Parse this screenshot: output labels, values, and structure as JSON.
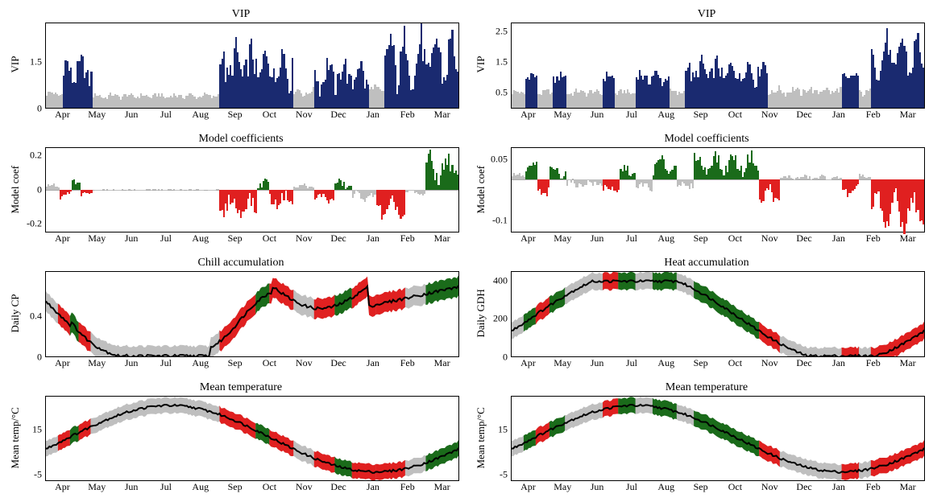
{
  "months": [
    "Apr",
    "May",
    "Jun",
    "Jul",
    "Aug",
    "Sep",
    "Oct",
    "Nov",
    "Dec",
    "Jan",
    "Feb",
    "Mar"
  ],
  "colors": {
    "navy": "#1a2a70",
    "gray": "#bfbfbf",
    "red": "#e02020",
    "green": "#1a6b1a",
    "black": "#000000",
    "band": "#bfbfbf"
  },
  "panels": [
    {
      "title": "VIP",
      "ylabel": "VIP",
      "type": "vip",
      "ylim": [
        0,
        2.8
      ],
      "yticks": [
        0.0,
        1.5
      ],
      "segments": [
        {
          "range": [
            0,
            0.04
          ],
          "base": 0.45,
          "amp": 0.05,
          "noise": 0.08,
          "hi": false
        },
        {
          "range": [
            0.04,
            0.11
          ],
          "base": 1.2,
          "amp": 0.3,
          "noise": 0.35,
          "hi": true
        },
        {
          "range": [
            0.11,
            0.42
          ],
          "base": 0.38,
          "amp": 0.05,
          "noise": 0.08,
          "hi": false
        },
        {
          "range": [
            0.42,
            0.6
          ],
          "base": 1.4,
          "amp": 0.5,
          "noise": 0.5,
          "hi": true
        },
        {
          "range": [
            0.6,
            0.65
          ],
          "base": 0.5,
          "amp": 0.1,
          "noise": 0.1,
          "hi": false
        },
        {
          "range": [
            0.65,
            0.78
          ],
          "base": 1.1,
          "amp": 0.4,
          "noise": 0.4,
          "hi": true
        },
        {
          "range": [
            0.78,
            0.82
          ],
          "base": 0.6,
          "amp": 0.1,
          "noise": 0.1,
          "hi": false
        },
        {
          "range": [
            0.82,
            1.0
          ],
          "base": 1.6,
          "amp": 0.7,
          "noise": 0.6,
          "hi": true
        }
      ]
    },
    {
      "title": "VIP",
      "ylabel": "VIP",
      "type": "vip",
      "ylim": [
        0,
        2.8
      ],
      "yticks": [
        0.5,
        1.5,
        2.5
      ],
      "segments": [
        {
          "range": [
            0,
            0.03
          ],
          "base": 0.5,
          "amp": 0.05,
          "noise": 0.08,
          "hi": false
        },
        {
          "range": [
            0.03,
            0.06
          ],
          "base": 1.0,
          "amp": 0.1,
          "noise": 0.15,
          "hi": true
        },
        {
          "range": [
            0.06,
            0.1
          ],
          "base": 0.5,
          "amp": 0.05,
          "noise": 0.08,
          "hi": false
        },
        {
          "range": [
            0.1,
            0.13
          ],
          "base": 1.0,
          "amp": 0.1,
          "noise": 0.15,
          "hi": true
        },
        {
          "range": [
            0.13,
            0.22
          ],
          "base": 0.5,
          "amp": 0.05,
          "noise": 0.1,
          "hi": false
        },
        {
          "range": [
            0.22,
            0.25
          ],
          "base": 1.0,
          "amp": 0.1,
          "noise": 0.15,
          "hi": true
        },
        {
          "range": [
            0.25,
            0.3
          ],
          "base": 0.5,
          "amp": 0.05,
          "noise": 0.1,
          "hi": false
        },
        {
          "range": [
            0.3,
            0.38
          ],
          "base": 1.0,
          "amp": 0.15,
          "noise": 0.2,
          "hi": true
        },
        {
          "range": [
            0.38,
            0.42
          ],
          "base": 0.5,
          "amp": 0.05,
          "noise": 0.1,
          "hi": false
        },
        {
          "range": [
            0.42,
            0.62
          ],
          "base": 1.2,
          "amp": 0.3,
          "noise": 0.3,
          "hi": true
        },
        {
          "range": [
            0.62,
            0.8
          ],
          "base": 0.55,
          "amp": 0.08,
          "noise": 0.12,
          "hi": false
        },
        {
          "range": [
            0.8,
            0.84
          ],
          "base": 1.0,
          "amp": 0.1,
          "noise": 0.15,
          "hi": true
        },
        {
          "range": [
            0.84,
            0.87
          ],
          "base": 0.5,
          "amp": 0.05,
          "noise": 0.1,
          "hi": false
        },
        {
          "range": [
            0.87,
            1.0
          ],
          "base": 1.7,
          "amp": 0.6,
          "noise": 0.4,
          "hi": true
        }
      ]
    },
    {
      "title": "Model coefficients",
      "ylabel": "Model coef",
      "type": "coef",
      "ylim": [
        -0.25,
        0.25
      ],
      "yticks": [
        -0.2,
        0.0,
        0.2
      ],
      "segments": [
        {
          "range": [
            0,
            0.03
          ],
          "base": 0.02,
          "amp": 0.01,
          "noise": 0.01,
          "color": "gray"
        },
        {
          "range": [
            0.03,
            0.06
          ],
          "base": -0.04,
          "amp": 0.02,
          "noise": 0.02,
          "color": "red"
        },
        {
          "range": [
            0.06,
            0.08
          ],
          "base": 0.05,
          "amp": 0.02,
          "noise": 0.02,
          "color": "green"
        },
        {
          "range": [
            0.08,
            0.11
          ],
          "base": -0.03,
          "amp": 0.01,
          "noise": 0.01,
          "color": "red"
        },
        {
          "range": [
            0.11,
            0.42
          ],
          "base": 0,
          "amp": 0,
          "noise": 0.003,
          "color": "gray"
        },
        {
          "range": [
            0.42,
            0.51
          ],
          "base": -0.1,
          "amp": 0.05,
          "noise": 0.04,
          "color": "red"
        },
        {
          "range": [
            0.51,
            0.54
          ],
          "base": 0.04,
          "amp": 0.02,
          "noise": 0.02,
          "color": "green"
        },
        {
          "range": [
            0.54,
            0.6
          ],
          "base": -0.06,
          "amp": 0.03,
          "noise": 0.03,
          "color": "red"
        },
        {
          "range": [
            0.6,
            0.65
          ],
          "base": 0.02,
          "amp": 0.01,
          "noise": 0.01,
          "color": "gray"
        },
        {
          "range": [
            0.65,
            0.7
          ],
          "base": -0.05,
          "amp": 0.02,
          "noise": 0.02,
          "color": "red"
        },
        {
          "range": [
            0.7,
            0.74
          ],
          "base": 0.03,
          "amp": 0.02,
          "noise": 0.02,
          "color": "green"
        },
        {
          "range": [
            0.74,
            0.8
          ],
          "base": -0.04,
          "amp": 0.02,
          "noise": 0.02,
          "color": "gray"
        },
        {
          "range": [
            0.8,
            0.87
          ],
          "base": -0.12,
          "amp": 0.05,
          "noise": 0.04,
          "color": "red"
        },
        {
          "range": [
            0.87,
            0.92
          ],
          "base": -0.02,
          "amp": 0.01,
          "noise": 0.01,
          "color": "gray"
        },
        {
          "range": [
            0.92,
            1.0
          ],
          "base": 0.13,
          "amp": 0.06,
          "noise": 0.05,
          "color": "green"
        }
      ]
    },
    {
      "title": "Model coefficients",
      "ylabel": "Model coef",
      "type": "coef",
      "ylim": [
        -0.13,
        0.08
      ],
      "yticks": [
        -0.1,
        0.05
      ],
      "segments": [
        {
          "range": [
            0,
            0.03
          ],
          "base": 0.01,
          "amp": 0.005,
          "noise": 0.005,
          "color": "gray"
        },
        {
          "range": [
            0.03,
            0.06
          ],
          "base": 0.03,
          "amp": 0.01,
          "noise": 0.01,
          "color": "green"
        },
        {
          "range": [
            0.06,
            0.09
          ],
          "base": -0.03,
          "amp": 0.01,
          "noise": 0.01,
          "color": "red"
        },
        {
          "range": [
            0.09,
            0.13
          ],
          "base": 0.02,
          "amp": 0.01,
          "noise": 0.01,
          "color": "green"
        },
        {
          "range": [
            0.13,
            0.22
          ],
          "base": -0.01,
          "amp": 0.005,
          "noise": 0.008,
          "color": "gray"
        },
        {
          "range": [
            0.22,
            0.26
          ],
          "base": -0.025,
          "amp": 0.01,
          "noise": 0.01,
          "color": "red"
        },
        {
          "range": [
            0.26,
            0.3
          ],
          "base": 0.02,
          "amp": 0.01,
          "noise": 0.01,
          "color": "green"
        },
        {
          "range": [
            0.3,
            0.34
          ],
          "base": -0.02,
          "amp": 0.01,
          "noise": 0.01,
          "color": "gray"
        },
        {
          "range": [
            0.34,
            0.4
          ],
          "base": 0.035,
          "amp": 0.015,
          "noise": 0.012,
          "color": "green"
        },
        {
          "range": [
            0.4,
            0.44
          ],
          "base": -0.015,
          "amp": 0.005,
          "noise": 0.008,
          "color": "gray"
        },
        {
          "range": [
            0.44,
            0.6
          ],
          "base": 0.04,
          "amp": 0.02,
          "noise": 0.015,
          "color": "green"
        },
        {
          "range": [
            0.6,
            0.65
          ],
          "base": -0.04,
          "amp": 0.02,
          "noise": 0.015,
          "color": "red"
        },
        {
          "range": [
            0.65,
            0.8
          ],
          "base": 0.005,
          "amp": 0.003,
          "noise": 0.005,
          "color": "gray"
        },
        {
          "range": [
            0.8,
            0.84
          ],
          "base": -0.03,
          "amp": 0.01,
          "noise": 0.01,
          "color": "red"
        },
        {
          "range": [
            0.84,
            0.87
          ],
          "base": 0.01,
          "amp": 0.005,
          "noise": 0.005,
          "color": "gray"
        },
        {
          "range": [
            0.87,
            1.0
          ],
          "base": -0.08,
          "amp": 0.04,
          "noise": 0.02,
          "color": "red"
        }
      ]
    },
    {
      "title": "Chill accumulation",
      "ylabel": "Daily CP",
      "type": "band",
      "ylim": [
        0,
        0.85
      ],
      "yticks": [
        0.0,
        0.4
      ],
      "curve": {
        "type": "chill"
      },
      "bandw": 0.1,
      "markers": [
        {
          "range": [
            0.03,
            0.06
          ],
          "color": "red"
        },
        {
          "range": [
            0.06,
            0.08
          ],
          "color": "green"
        },
        {
          "range": [
            0.08,
            0.11
          ],
          "color": "red"
        },
        {
          "range": [
            0.42,
            0.51
          ],
          "color": "red"
        },
        {
          "range": [
            0.51,
            0.54
          ],
          "color": "green"
        },
        {
          "range": [
            0.54,
            0.6
          ],
          "color": "red"
        },
        {
          "range": [
            0.65,
            0.7
          ],
          "color": "red"
        },
        {
          "range": [
            0.7,
            0.74
          ],
          "color": "green"
        },
        {
          "range": [
            0.74,
            0.8
          ],
          "color": "red"
        },
        {
          "range": [
            0.8,
            0.87
          ],
          "color": "red"
        },
        {
          "range": [
            0.92,
            1.0
          ],
          "color": "green"
        }
      ]
    },
    {
      "title": "Heat accumulation",
      "ylabel": "Daily GDH",
      "type": "band",
      "ylim": [
        0,
        450
      ],
      "yticks": [
        0,
        200,
        400
      ],
      "curve": {
        "type": "heat"
      },
      "bandw": 45,
      "markers": [
        {
          "range": [
            0.03,
            0.06
          ],
          "color": "green"
        },
        {
          "range": [
            0.06,
            0.09
          ],
          "color": "red"
        },
        {
          "range": [
            0.09,
            0.13
          ],
          "color": "green"
        },
        {
          "range": [
            0.22,
            0.26
          ],
          "color": "red"
        },
        {
          "range": [
            0.26,
            0.3
          ],
          "color": "green"
        },
        {
          "range": [
            0.34,
            0.4
          ],
          "color": "green"
        },
        {
          "range": [
            0.44,
            0.6
          ],
          "color": "green"
        },
        {
          "range": [
            0.6,
            0.65
          ],
          "color": "red"
        },
        {
          "range": [
            0.8,
            0.84
          ],
          "color": "red"
        },
        {
          "range": [
            0.87,
            1.0
          ],
          "color": "red"
        }
      ]
    },
    {
      "title": "Mean temperature",
      "ylabel": "Mean temp/°C",
      "type": "band",
      "ylim": [
        -8,
        30
      ],
      "yticks": [
        -5,
        15
      ],
      "curve": {
        "type": "temp"
      },
      "bandw": 3.5,
      "markers": [
        {
          "range": [
            0.03,
            0.06
          ],
          "color": "red"
        },
        {
          "range": [
            0.06,
            0.08
          ],
          "color": "green"
        },
        {
          "range": [
            0.08,
            0.11
          ],
          "color": "red"
        },
        {
          "range": [
            0.42,
            0.51
          ],
          "color": "red"
        },
        {
          "range": [
            0.51,
            0.54
          ],
          "color": "green"
        },
        {
          "range": [
            0.54,
            0.6
          ],
          "color": "red"
        },
        {
          "range": [
            0.65,
            0.7
          ],
          "color": "red"
        },
        {
          "range": [
            0.7,
            0.74
          ],
          "color": "green"
        },
        {
          "range": [
            0.74,
            0.8
          ],
          "color": "red"
        },
        {
          "range": [
            0.8,
            0.87
          ],
          "color": "red"
        },
        {
          "range": [
            0.92,
            1.0
          ],
          "color": "green"
        }
      ]
    },
    {
      "title": "Mean temperature",
      "ylabel": "Mean temp/°C",
      "type": "band",
      "ylim": [
        -8,
        30
      ],
      "yticks": [
        -5,
        15
      ],
      "curve": {
        "type": "temp"
      },
      "bandw": 3.5,
      "markers": [
        {
          "range": [
            0.03,
            0.06
          ],
          "color": "green"
        },
        {
          "range": [
            0.06,
            0.09
          ],
          "color": "red"
        },
        {
          "range": [
            0.09,
            0.13
          ],
          "color": "green"
        },
        {
          "range": [
            0.22,
            0.26
          ],
          "color": "red"
        },
        {
          "range": [
            0.26,
            0.3
          ],
          "color": "green"
        },
        {
          "range": [
            0.34,
            0.4
          ],
          "color": "green"
        },
        {
          "range": [
            0.44,
            0.6
          ],
          "color": "green"
        },
        {
          "range": [
            0.6,
            0.65
          ],
          "color": "red"
        },
        {
          "range": [
            0.8,
            0.84
          ],
          "color": "red"
        },
        {
          "range": [
            0.87,
            1.0
          ],
          "color": "red"
        }
      ]
    }
  ]
}
